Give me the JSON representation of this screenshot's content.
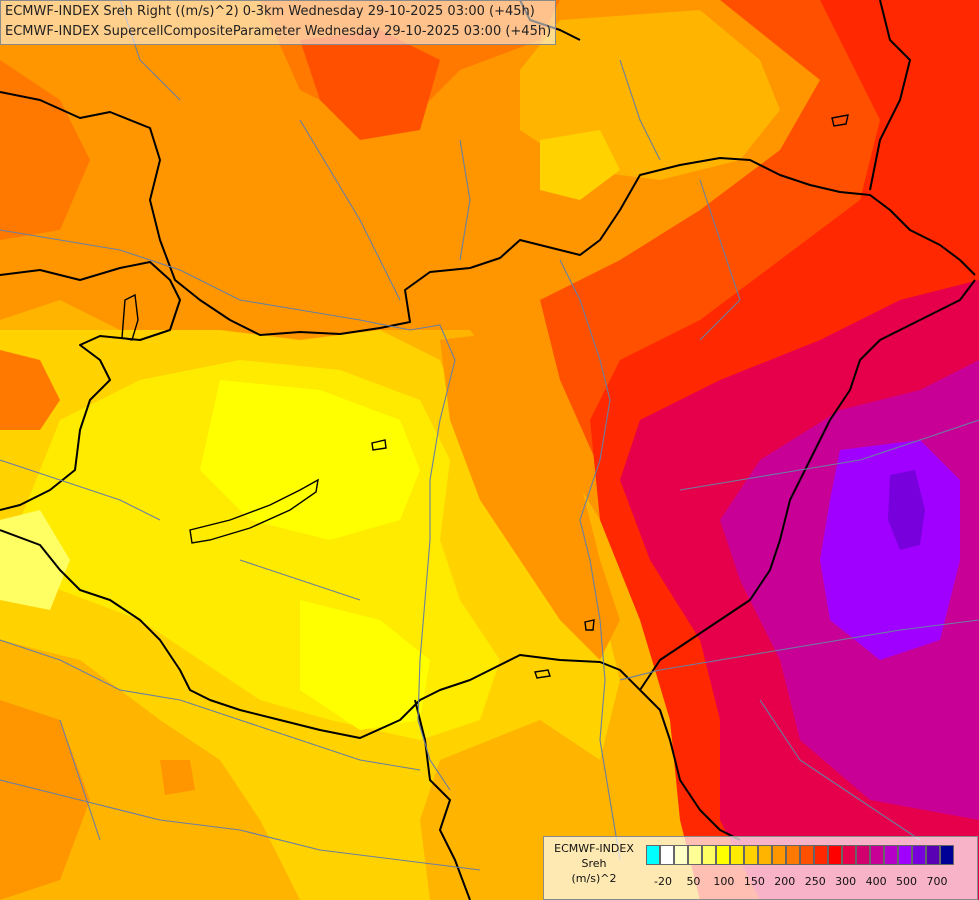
{
  "title": {
    "line1": "ECMWF-INDEX Sreh Right ((m/s)^2) 0-3km Wednesday 29-10-2025 03:00 (+45h)",
    "line2": "ECMWF-INDEX SupercellCompositeParameter Wednesday 29-10-2025 03:00 (+45h)"
  },
  "legend": {
    "source": "ECMWF-INDEX",
    "variable": "Sreh",
    "unit": "(m/s)^2",
    "swatch_colors": [
      "#00ffff",
      "#ffffff",
      "#ffffc8",
      "#ffff96",
      "#ffff64",
      "#ffff00",
      "#ffeb00",
      "#ffd200",
      "#ffb400",
      "#ff9600",
      "#ff7800",
      "#ff5000",
      "#ff2800",
      "#ff0000",
      "#e6004b",
      "#d2006e",
      "#c80096",
      "#b400c8",
      "#a000ff",
      "#7800dc",
      "#5a00b4",
      "#000096"
    ],
    "labels": [
      "-20",
      "50",
      "100",
      "150",
      "200",
      "250",
      "300",
      "400",
      "500",
      "700"
    ]
  },
  "map": {
    "region": "Hungary and surroundings",
    "palette": {
      "yellow": "#ffff00",
      "light_yellow": "#ffff64",
      "gold": "#ffd200",
      "amber": "#ffb400",
      "orange": "#ff9600",
      "dark_orange": "#ff7800",
      "red_orange": "#ff5000",
      "red": "#ff2800",
      "crimson": "#e6004b",
      "magenta": "#c80096",
      "purple": "#a000ff",
      "violet": "#7800dc"
    }
  }
}
